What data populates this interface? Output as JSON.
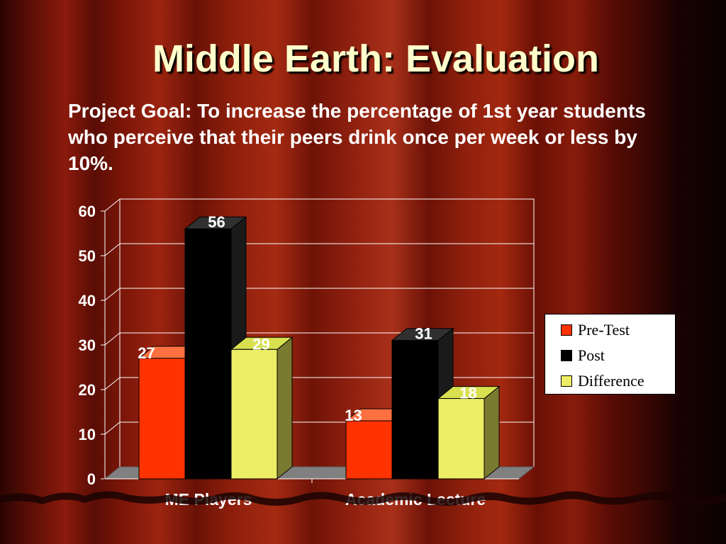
{
  "slide": {
    "title": "Middle Earth:  Evaluation",
    "goal_text": "Project Goal: To increase the percentage of 1st year students who perceive that their peers drink once per week or less by 10%."
  },
  "colors": {
    "pre_test": "#ff3300",
    "post": "#000000",
    "difference": "#eeee66",
    "axis_text": "#ffffff",
    "title": "#ffffcc"
  },
  "chart_data": {
    "type": "bar",
    "title": "",
    "xlabel": "",
    "ylabel": "",
    "categories": [
      "ME Players",
      "Academic Lecture"
    ],
    "series": [
      {
        "name": "Pre-Test",
        "values": [
          27,
          13
        ]
      },
      {
        "name": "Post",
        "values": [
          56,
          31
        ]
      },
      {
        "name": "Difference",
        "values": [
          29,
          18
        ]
      }
    ],
    "ylim": [
      0,
      60
    ],
    "yticks": [
      "0",
      "10",
      "20",
      "30",
      "40",
      "50",
      "60"
    ],
    "data_labels": [
      [
        "27",
        "13"
      ],
      [
        "56",
        "31"
      ],
      [
        "29",
        "18"
      ]
    ],
    "grid": true,
    "legend": "right",
    "style": "3d-clustered-bar"
  }
}
